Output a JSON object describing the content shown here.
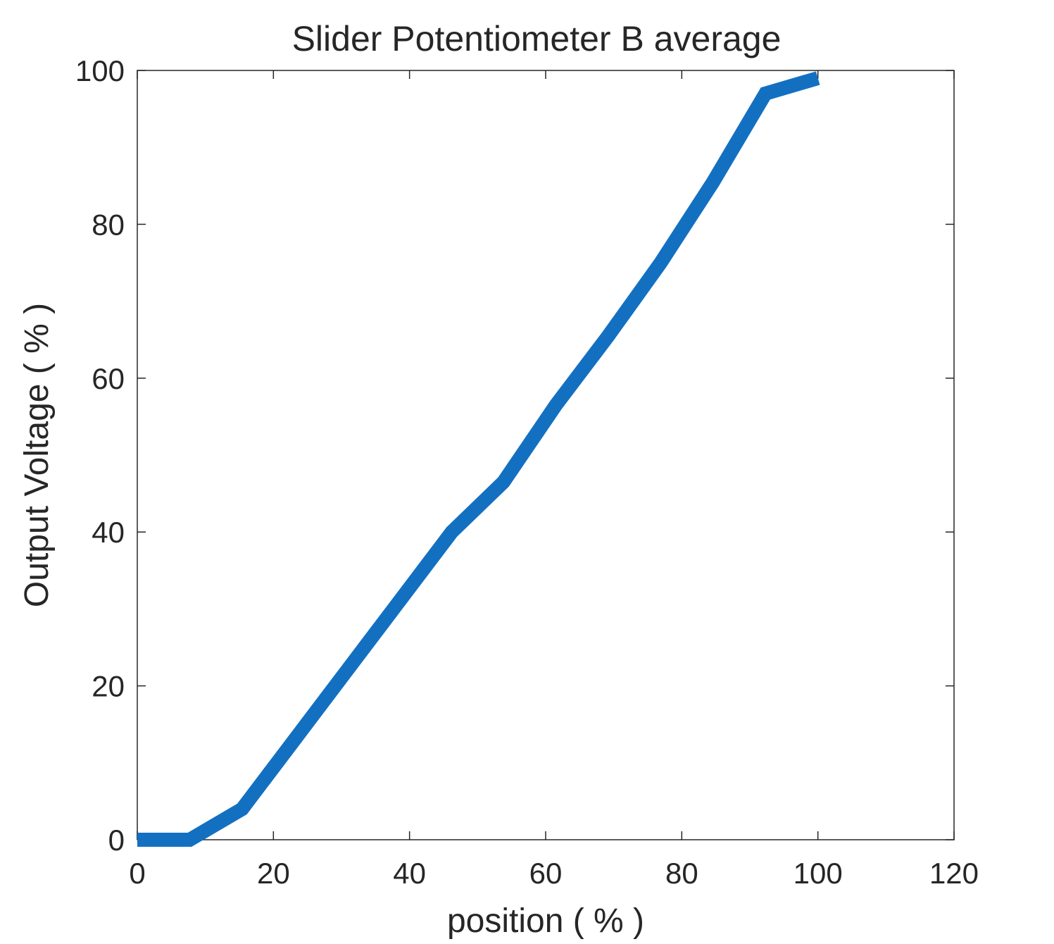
{
  "chart_data": {
    "type": "line",
    "title": "Slider  Potentiometer  B  average",
    "xlabel": "position ( % )",
    "ylabel": "Output Voltage ( % )",
    "xlim": [
      0,
      120
    ],
    "ylim": [
      0,
      100
    ],
    "xticks": [
      0,
      20,
      40,
      60,
      80,
      100,
      120
    ],
    "yticks": [
      0,
      20,
      40,
      60,
      80,
      100
    ],
    "grid": false,
    "legend": "none",
    "series": [
      {
        "color": "#1370C1",
        "x": [
          0,
          7.7,
          15.4,
          23.1,
          30.8,
          38.5,
          46.2,
          53.8,
          61.5,
          69.2,
          76.9,
          84.6,
          92.3,
          100
        ],
        "y": [
          0,
          0,
          4,
          13,
          22,
          31,
          40,
          46.5,
          56.5,
          65.5,
          75,
          85.5,
          97,
          99
        ]
      }
    ]
  }
}
